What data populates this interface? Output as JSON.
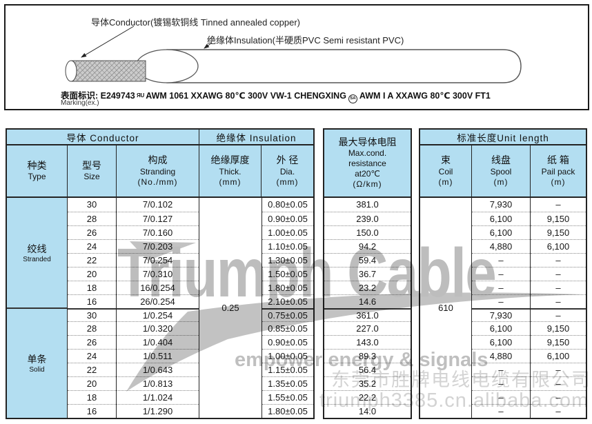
{
  "diagram": {
    "conductor_label": "导体Conductor(镀锡软铜线  Tinned annealed copper)",
    "insulation_label": "绝缘体Insulation(半硬质PVC  Semi resistant PVC)",
    "marking_label": "表面标识: E249743",
    "marking_mid": "AWM 1061   XXAWG 80℃ 300V VW-1 CHENGXING",
    "marking_end": "AWM I A   XXAWG 80℃ 300V  FT1",
    "marking_note": "Marking(ex.)",
    "icons": {
      "ul_recognized_mark": "RU",
      "csa_mark": "SA"
    }
  },
  "table": {
    "groups": {
      "conductor": "导体  Conductor",
      "insulation": "绝缘体  Insulation",
      "unit_length": "标准长度Unit  length"
    },
    "columns": {
      "type_zh": "种类",
      "type_en": "Type",
      "size_zh": "型号",
      "size_en": "Size",
      "stranding_zh": "构成",
      "stranding_en": "Stranding",
      "stranding_unit": "(No./mm)",
      "thick_zh": "绝缘厚度",
      "thick_en": "Thick.",
      "thick_unit": "(mm)",
      "dia_zh": "外 径",
      "dia_en": "Dia.",
      "dia_unit": "(mm)",
      "res_zh": "最大导体电阻",
      "res_en1": "Max.cond.",
      "res_en2": "resistance",
      "res_en3": "at20℃",
      "res_unit": "(Ω/km)",
      "coil_zh": "束",
      "coil_en": "Coil",
      "coil_unit": "(m)",
      "spool_zh": "线盘",
      "spool_en": "Spool",
      "spool_unit": "(m)",
      "pail_zh": "纸 箱",
      "pail_en": "Pail pack",
      "pail_unit": "(m)"
    },
    "merged": {
      "thickness": "0.25",
      "coil_length": "610"
    },
    "sections": [
      {
        "type_zh": "绞线",
        "type_en": "Stranded",
        "rows": [
          {
            "size": "30",
            "stranding": "7/0.102",
            "dia": "0.80±0.05",
            "res": "381.0",
            "spool": "7,930",
            "pail": "–"
          },
          {
            "size": "28",
            "stranding": "7/0.127",
            "dia": "0.90±0.05",
            "res": "239.0",
            "spool": "6,100",
            "pail": "9,150"
          },
          {
            "size": "26",
            "stranding": "7/0.160",
            "dia": "1.00±0.05",
            "res": "150.0",
            "spool": "6,100",
            "pail": "9,150"
          },
          {
            "size": "24",
            "stranding": "7/0.203",
            "dia": "1.10±0.05",
            "res": "94.2",
            "spool": "4,880",
            "pail": "6,100"
          },
          {
            "size": "22",
            "stranding": "7/0.254",
            "dia": "1.30±0.05",
            "res": "59.4",
            "spool": "–",
            "pail": "–"
          },
          {
            "size": "20",
            "stranding": "7/0.310",
            "dia": "1.50±0.05",
            "res": "36.7",
            "spool": "–",
            "pail": "–"
          },
          {
            "size": "18",
            "stranding": "16/0.254",
            "dia": "1.80±0.05",
            "res": "23.2",
            "spool": "–",
            "pail": "–"
          },
          {
            "size": "16",
            "stranding": "26/0.254",
            "dia": "2.10±0.05",
            "res": "14.6",
            "spool": "–",
            "pail": "–"
          }
        ]
      },
      {
        "type_zh": "单条",
        "type_en": "Solid",
        "rows": [
          {
            "size": "30",
            "stranding": "1/0.254",
            "dia": "0.75±0.05",
            "res": "361.0",
            "spool": "7,930",
            "pail": "–"
          },
          {
            "size": "28",
            "stranding": "1/0.320",
            "dia": "0.85±0.05",
            "res": "227.0",
            "spool": "6,100",
            "pail": "9,150"
          },
          {
            "size": "26",
            "stranding": "1/0.404",
            "dia": "0.90±0.05",
            "res": "143.0",
            "spool": "6,100",
            "pail": "9,150"
          },
          {
            "size": "24",
            "stranding": "1/0.511",
            "dia": "1.00±0.05",
            "res": "89.3",
            "spool": "4,880",
            "pail": "6,100"
          },
          {
            "size": "22",
            "stranding": "1/0.643",
            "dia": "1.15±0.05",
            "res": "56.4",
            "spool": "–",
            "pail": "–"
          },
          {
            "size": "20",
            "stranding": "1/0.813",
            "dia": "1.35±0.05",
            "res": "35.2",
            "spool": "–",
            "pail": "–"
          },
          {
            "size": "18",
            "stranding": "1/1.024",
            "dia": "1.55±0.05",
            "res": "22.2",
            "spool": "–",
            "pail": "–"
          },
          {
            "size": "16",
            "stranding": "1/1.290",
            "dia": "1.80±0.05",
            "res": "14.0",
            "spool": "–",
            "pail": "–"
          }
        ]
      }
    ]
  },
  "watermark": {
    "brand": "Triumph Cable",
    "tagline": "empower energy & signals",
    "company": "东莞市胜牌电线电缆有限公司",
    "url": "triumph3385.cn.alibaba.com"
  },
  "colors": {
    "header_blue": "#b3def1",
    "table_line": "#222222",
    "watermark_gray": "#c2c2c2",
    "watermark_light": "#d3d3d3"
  }
}
